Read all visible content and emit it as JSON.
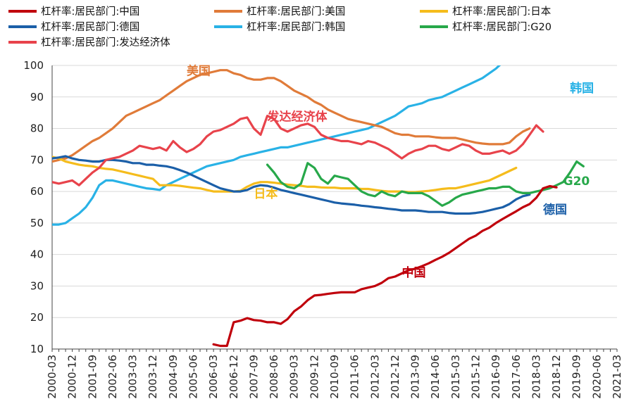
{
  "chart_data": {
    "type": "line",
    "title": "",
    "xlabel": "",
    "ylabel": "",
    "ylim": [
      10,
      100
    ],
    "yticks": [
      "100",
      "90",
      "80",
      "70",
      "60",
      "50",
      "40",
      "30",
      "20",
      "10"
    ],
    "xticks": [
      "2000-03",
      "2000-12",
      "2001-09",
      "2002-06",
      "2003-03",
      "2003-12",
      "2004-09",
      "2005-06",
      "2006-03",
      "2006-12",
      "2007-09",
      "2008-06",
      "2009-03",
      "2009-12",
      "2010-09",
      "2011-06",
      "2012-03",
      "2012-12",
      "2013-09",
      "2014-06",
      "2015-03",
      "2015-12",
      "2016-09",
      "2017-06",
      "2018-03",
      "2018-12",
      "2019-09",
      "2020-06",
      "2021-03"
    ],
    "grid": "horizontal",
    "legend_position": "top",
    "series": [
      {
        "name": "杠杆率:居民部门:中国",
        "color": "#c0000c",
        "start": "2006-03",
        "values": [
          11.5,
          11,
          11,
          18.5,
          19,
          19.8,
          19.2,
          19,
          18.5,
          18.5,
          18,
          19.5,
          22,
          23.5,
          25.5,
          27,
          27.2,
          27.5,
          27.8,
          28,
          28,
          28,
          29,
          29.5,
          30,
          31,
          32.5,
          33,
          34,
          35,
          35.5,
          36.3,
          37.2,
          38.3,
          39.3,
          40.5,
          42,
          43.5,
          45,
          46,
          47.5,
          48.5,
          50,
          51.3,
          52.5,
          53.7,
          55,
          56,
          58,
          61,
          61.7,
          61.3
        ]
      },
      {
        "name": "杠杆率:居民部门:美国",
        "color": "#e07b39",
        "start": "2000-03",
        "values": [
          69.5,
          70,
          70.5,
          71.5,
          73,
          74.5,
          76,
          77,
          78.5,
          80,
          82,
          84,
          85,
          86,
          87,
          88,
          89,
          90.5,
          92,
          93.5,
          95,
          96,
          97,
          97.5,
          98,
          98.5,
          98.5,
          97.5,
          97,
          96,
          95.5,
          95.5,
          96,
          96,
          95,
          93.5,
          92,
          91,
          90,
          88.5,
          87.5,
          86,
          85,
          84,
          83,
          82.5,
          82,
          81.5,
          81,
          80.5,
          79.5,
          78.5,
          78,
          78,
          77.5,
          77.5,
          77.5,
          77.2,
          77,
          77,
          77,
          76.5,
          76,
          75.5,
          75.2,
          75,
          75,
          75,
          75.5,
          77.5,
          79,
          80
        ]
      },
      {
        "name": "杠杆率:居民部门:日本",
        "color": "#f5bc1c",
        "start": "2000-03",
        "values": [
          71,
          70.5,
          69.5,
          69,
          68.5,
          68.2,
          68,
          67.5,
          67.2,
          67,
          66.5,
          66,
          65.5,
          65,
          64.5,
          64,
          62,
          62,
          62,
          61.8,
          61.5,
          61.2,
          61,
          60.5,
          60,
          60,
          60,
          60,
          60.2,
          61.5,
          62.5,
          63,
          63,
          62.8,
          62.5,
          62.2,
          62,
          61.8,
          61.5,
          61.5,
          61.3,
          61.2,
          61.2,
          61,
          61,
          61,
          60.8,
          60.8,
          60.5,
          60.2,
          60,
          60,
          60,
          59.8,
          59.8,
          60,
          60.2,
          60.5,
          60.8,
          61,
          61,
          61.5,
          62,
          62.5,
          63,
          63.5,
          64.5,
          65.5,
          66.5,
          67.5
        ]
      },
      {
        "name": "杠杆率:居民部门:德国",
        "color": "#1b5fa8",
        "start": "2000-03",
        "values": [
          70.5,
          70.8,
          71.2,
          70.5,
          70,
          69.8,
          69.5,
          69.5,
          70,
          70,
          69.8,
          69.5,
          69,
          69,
          68.5,
          68.5,
          68.2,
          68,
          67.5,
          66.8,
          66,
          65,
          64,
          63,
          62,
          61,
          60.5,
          60,
          60,
          60.5,
          61.5,
          62,
          61.8,
          61.2,
          60.5,
          60,
          59.5,
          59,
          58.5,
          58,
          57.5,
          57,
          56.5,
          56.2,
          56,
          55.8,
          55.5,
          55.3,
          55,
          54.8,
          54.5,
          54.3,
          54,
          54,
          54,
          53.8,
          53.5,
          53.5,
          53.5,
          53.2,
          53,
          53,
          53,
          53.2,
          53.5,
          54,
          54.5,
          55,
          56,
          57.5,
          58.5,
          59
        ]
      },
      {
        "name": "杠杆率:居民部门:韩国",
        "color": "#29b2e6",
        "start": "2000-03",
        "values": [
          49.5,
          49.5,
          50,
          51.5,
          53,
          55,
          58,
          62,
          63.5,
          63.5,
          63,
          62.5,
          62,
          61.5,
          61,
          60.8,
          60.5,
          62,
          63,
          64,
          65,
          66,
          67,
          68,
          68.5,
          69,
          69.5,
          70,
          71,
          71.5,
          72,
          72.5,
          73,
          73.5,
          74,
          74,
          74.5,
          75,
          75.5,
          76,
          76.5,
          77,
          77.5,
          78,
          78.5,
          79,
          79.5,
          80,
          81,
          82,
          83,
          84,
          85.5,
          87,
          87.5,
          88,
          89,
          89.5,
          90,
          91,
          92,
          93,
          94,
          95,
          96,
          97.5,
          99,
          101
        ]
      },
      {
        "name": "杠杆率:居民部门:G20",
        "color": "#27a84a",
        "start": "2008-03",
        "values": [
          68.5,
          66,
          63,
          61.5,
          61,
          62.5,
          69,
          67.5,
          64,
          62.5,
          65,
          64.5,
          64,
          62,
          60,
          59,
          58.5,
          60,
          59,
          58.5,
          60,
          59.5,
          59.5,
          59.5,
          58.5,
          57,
          55.5,
          56.5,
          58,
          59,
          59.5,
          60,
          60.5,
          61,
          61,
          61.5,
          61.5,
          60,
          59.5,
          59.5,
          60,
          60.5,
          61,
          62,
          63,
          66,
          69.5,
          68
        ]
      },
      {
        "name": "杠杆率:居民部门:发达经济体",
        "color": "#e8434b",
        "start": "2000-03",
        "values": [
          63,
          62.5,
          63,
          63.5,
          62,
          64,
          66,
          67.5,
          70,
          70.5,
          71,
          72,
          73,
          74.5,
          74,
          73.5,
          74,
          73,
          76,
          74,
          72.5,
          73.5,
          75,
          77.5,
          79,
          79.5,
          80.5,
          81.5,
          83,
          83.5,
          80,
          78,
          84,
          83,
          80,
          79,
          80,
          81,
          81.5,
          80.5,
          78,
          77,
          76.5,
          76,
          76,
          75.5,
          75,
          76,
          75.5,
          74.5,
          73.5,
          72,
          70.5,
          72,
          73,
          73.5,
          74.5,
          74.5,
          73.5,
          73,
          74,
          75,
          74.5,
          73,
          72,
          72,
          72.5,
          73,
          72,
          73,
          75,
          78,
          81,
          79
        ]
      }
    ],
    "annotations": [
      {
        "text": "美国",
        "color": "#e07b39",
        "x": "2005-03",
        "y": 97
      },
      {
        "text": "发达经济体",
        "color": "#e8434b",
        "x": "2008-03",
        "y": 82.5
      },
      {
        "text": "韩国",
        "color": "#29b2e6",
        "x": "2019-06",
        "y": 91.5
      },
      {
        "text": "日本",
        "color": "#f5bc1c",
        "x": "2007-09",
        "y": 58
      },
      {
        "text": "G20",
        "color": "#27a84a",
        "x": "2019-03",
        "y": 62
      },
      {
        "text": "德国",
        "color": "#1b5fa8",
        "x": "2018-06",
        "y": 53
      },
      {
        "text": "中国",
        "color": "#c0000c",
        "x": "2013-03",
        "y": 33
      }
    ]
  }
}
